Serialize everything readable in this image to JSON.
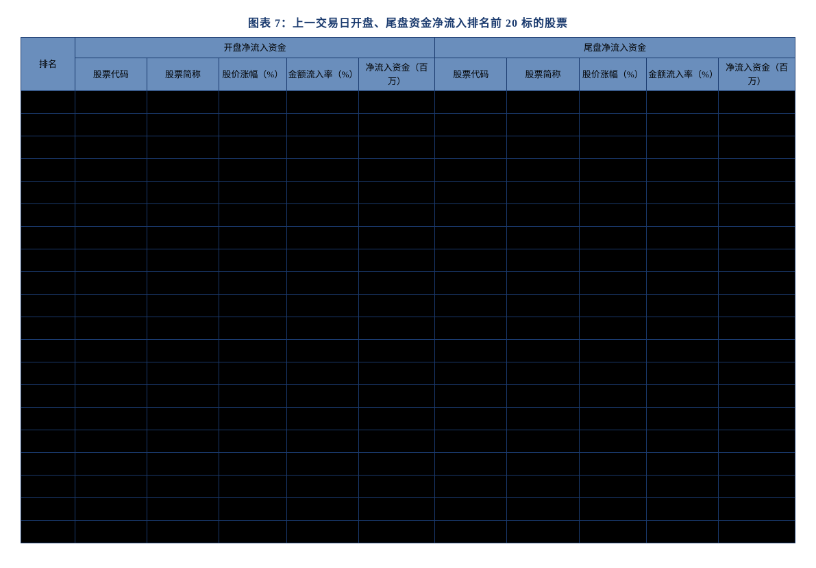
{
  "title": "图表 7：上一交易日开盘、尾盘资金净流入排名前 20 标的股票",
  "colors": {
    "header_bg": "#6a8ebc",
    "border": "#1a3a6e",
    "title_color": "#1a3a6e",
    "body_cell_bg": "#000000",
    "page_bg": "#ffffff"
  },
  "table": {
    "type": "table",
    "num_body_rows": 20,
    "header_top": {
      "rank": "排名",
      "open_group": "开盘净流入资金",
      "close_group": "尾盘净流入资金"
    },
    "header_sub": {
      "open": {
        "code": "股票代码",
        "name": "股票简称",
        "pct": "股价涨幅（%）",
        "rate": "金额流入率（%）",
        "net": "净流入资金（百万）"
      },
      "close": {
        "code": "股票代码",
        "name": "股票简称",
        "pct": "股价涨幅（%）",
        "rate": "金额流入率（%）",
        "net": "净流入资金（百万）"
      }
    }
  }
}
